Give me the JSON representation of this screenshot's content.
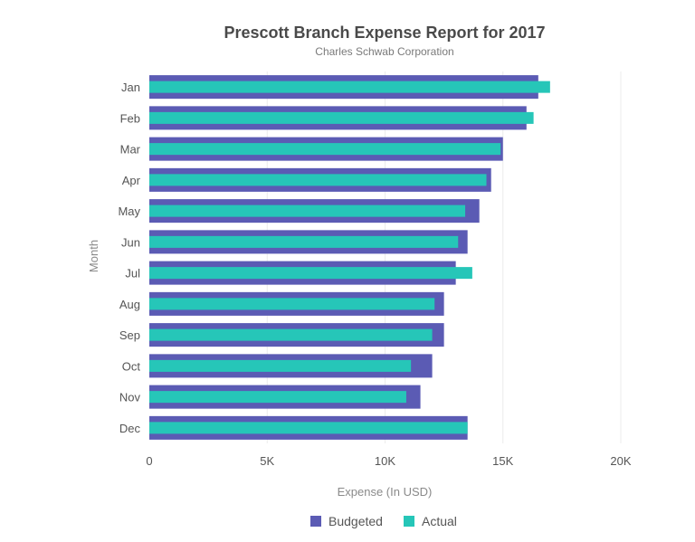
{
  "chart_data": {
    "type": "bar",
    "orientation": "horizontal",
    "title": "Prescott Branch Expense Report for 2017",
    "subtitle": "Charles Schwab Corporation",
    "xlabel": "Expense (In USD)",
    "ylabel": "Month",
    "categories": [
      "Jan",
      "Feb",
      "Mar",
      "Apr",
      "May",
      "Jun",
      "Jul",
      "Aug",
      "Sep",
      "Oct",
      "Nov",
      "Dec"
    ],
    "xlim": [
      0,
      20000
    ],
    "xticks": [
      0,
      5000,
      10000,
      15000,
      20000
    ],
    "xtick_labels": [
      "0",
      "5K",
      "10K",
      "15K",
      "20K"
    ],
    "grid": true,
    "legend_position": "bottom-center",
    "series": [
      {
        "name": "Budgeted",
        "color": "#5b5bb4",
        "values": [
          16500,
          16000,
          15000,
          14500,
          14000,
          13500,
          13000,
          12500,
          12500,
          12000,
          11500,
          13500
        ]
      },
      {
        "name": "Actual",
        "color": "#26c6b8",
        "values": [
          17000,
          16300,
          14900,
          14300,
          13400,
          13100,
          13700,
          12100,
          12000,
          11100,
          10900,
          13500
        ]
      }
    ]
  }
}
